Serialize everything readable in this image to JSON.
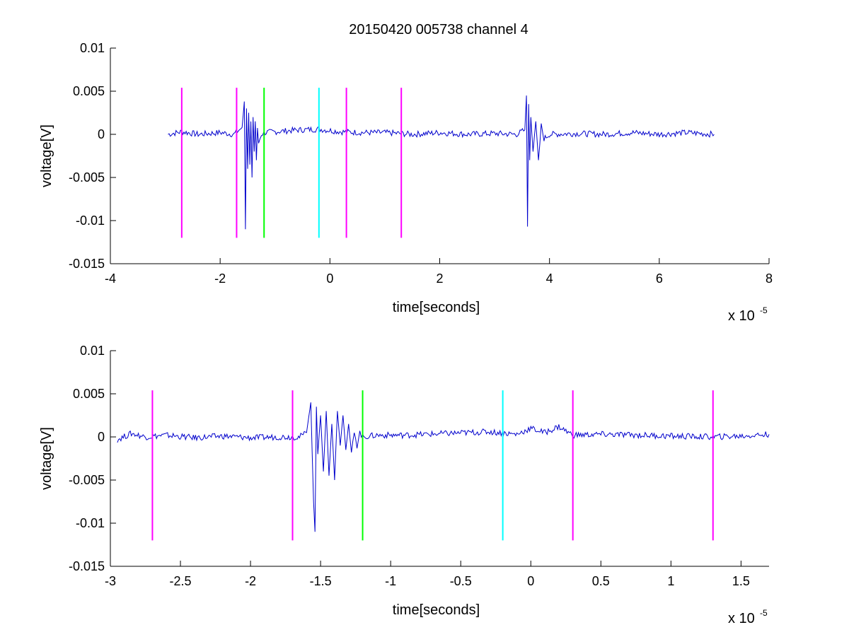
{
  "title": "20150420 005738 channel 4",
  "chart_data": [
    {
      "type": "line",
      "xlabel": "time[seconds]",
      "ylabel": "voltage[V]",
      "x_exponent_label": "x 10",
      "x_exponent_power": "-5",
      "xlim": [
        -4,
        8
      ],
      "ylim": [
        -0.015,
        0.01
      ],
      "x_ticks": [
        -4,
        -2,
        0,
        2,
        4,
        6,
        8
      ],
      "x_tick_labels": [
        "-4",
        "-2",
        "0",
        "2",
        "4",
        "6",
        "8"
      ],
      "y_ticks": [
        0.01,
        0.005,
        0,
        -0.005,
        -0.01,
        -0.015
      ],
      "y_tick_labels": [
        "0.01",
        "0.005",
        "0",
        "-0.005",
        "-0.01",
        "-0.015"
      ],
      "series": [
        {
          "color": "#0000cc",
          "x": [
            -2.95,
            -2.7,
            -2.4,
            -2.0,
            -1.75,
            -1.6,
            -1.56,
            -1.54,
            -1.52,
            -1.5,
            -1.48,
            -1.46,
            -1.44,
            -1.42,
            -1.4,
            -1.38,
            -1.36,
            -1.34,
            -1.32,
            -1.3,
            -1.25,
            -1.2,
            -1.0,
            -0.6,
            -0.2,
            0.2,
            0.6,
            1.0,
            1.5,
            2.0,
            2.5,
            3.0,
            3.4,
            3.55,
            3.58,
            3.6,
            3.62,
            3.64,
            3.66,
            3.7,
            3.75,
            3.8,
            3.85,
            3.9,
            4.0,
            4.5,
            5.0,
            5.5,
            6.0,
            6.5,
            7.0
          ],
          "y": [
            0.0,
            0.0003,
            0.0,
            0.0002,
            0.0,
            0.0008,
            0.0038,
            -0.011,
            0.003,
            -0.004,
            0.0025,
            -0.0035,
            0.0015,
            -0.005,
            0.002,
            -0.002,
            0.0015,
            -0.003,
            0.0005,
            -0.001,
            0.0,
            0.0002,
            0.0003,
            0.0005,
            0.0006,
            0.0003,
            0.0002,
            0.0002,
            0.0,
            0.0002,
            0.0,
            0.0001,
            0.0,
            0.0005,
            0.0045,
            -0.0107,
            0.0035,
            -0.003,
            0.002,
            -0.002,
            0.0015,
            -0.003,
            0.001,
            -0.0005,
            0.0,
            0.0001,
            0.0,
            0.0002,
            0.0,
            0.0002,
            0.0
          ]
        }
      ],
      "vertical_markers": [
        {
          "x": -2.7,
          "color": "#ff00ff"
        },
        {
          "x": -1.7,
          "color": "#ff00ff"
        },
        {
          "x": -1.2,
          "color": "#00ff00"
        },
        {
          "x": -0.2,
          "color": "#00ffff"
        },
        {
          "x": 0.3,
          "color": "#ff00ff"
        },
        {
          "x": 1.3,
          "color": "#ff00ff"
        }
      ],
      "marker_range": [
        -0.012,
        0.0054
      ]
    },
    {
      "type": "line",
      "xlabel": "time[seconds]",
      "ylabel": "voltage[V]",
      "x_exponent_label": "x 10",
      "x_exponent_power": "-5",
      "xlim": [
        -3.0,
        1.7
      ],
      "ylim": [
        -0.015,
        0.01
      ],
      "x_ticks": [
        -3,
        -2.5,
        -2,
        -1.5,
        -1,
        -0.5,
        0,
        0.5,
        1,
        1.5
      ],
      "x_tick_labels": [
        "-3",
        "-2.5",
        "-2",
        "-1.5",
        "-1",
        "-0.5",
        "0",
        "0.5",
        "1",
        "1.5"
      ],
      "y_ticks": [
        0.01,
        0.005,
        0,
        -0.005,
        -0.01,
        -0.015
      ],
      "y_tick_labels": [
        "0.01",
        "0.005",
        "0",
        "-0.005",
        "-0.01",
        "-0.015"
      ],
      "series": [
        {
          "color": "#0000cc",
          "x": [
            -2.95,
            -2.85,
            -2.75,
            -2.6,
            -2.4,
            -2.2,
            -2.0,
            -1.8,
            -1.65,
            -1.6,
            -1.57,
            -1.55,
            -1.54,
            -1.53,
            -1.52,
            -1.5,
            -1.48,
            -1.46,
            -1.44,
            -1.42,
            -1.4,
            -1.38,
            -1.36,
            -1.34,
            -1.32,
            -1.3,
            -1.28,
            -1.26,
            -1.24,
            -1.22,
            -1.2,
            -1.1,
            -0.9,
            -0.6,
            -0.3,
            -0.1,
            0.0,
            0.1,
            0.2,
            0.3,
            0.5,
            0.8,
            1.0,
            1.3,
            1.5,
            1.7
          ],
          "y": [
            -0.0003,
            0.0004,
            0.0,
            0.0002,
            -0.0001,
            0.0001,
            -0.0001,
            0.0,
            0.0,
            0.0005,
            0.004,
            -0.0075,
            -0.011,
            0.0035,
            -0.002,
            0.0025,
            -0.004,
            0.003,
            -0.0045,
            0.0015,
            -0.005,
            0.003,
            -0.001,
            0.0025,
            -0.0015,
            0.0015,
            -0.0018,
            0.0008,
            -0.001,
            0.0005,
            0.0,
            0.0002,
            0.0002,
            0.0004,
            0.0006,
            0.0003,
            0.001,
            0.0005,
            0.0012,
            0.0002,
            0.0003,
            0.0002,
            0.0001,
            0.0,
            0.0001,
            0.0003
          ]
        }
      ],
      "vertical_markers": [
        {
          "x": -2.7,
          "color": "#ff00ff"
        },
        {
          "x": -1.7,
          "color": "#ff00ff"
        },
        {
          "x": -1.2,
          "color": "#00ff00"
        },
        {
          "x": -0.2,
          "color": "#00ffff"
        },
        {
          "x": 0.3,
          "color": "#ff00ff"
        },
        {
          "x": 1.3,
          "color": "#ff00ff"
        }
      ],
      "marker_range": [
        -0.012,
        0.0054
      ]
    }
  ]
}
